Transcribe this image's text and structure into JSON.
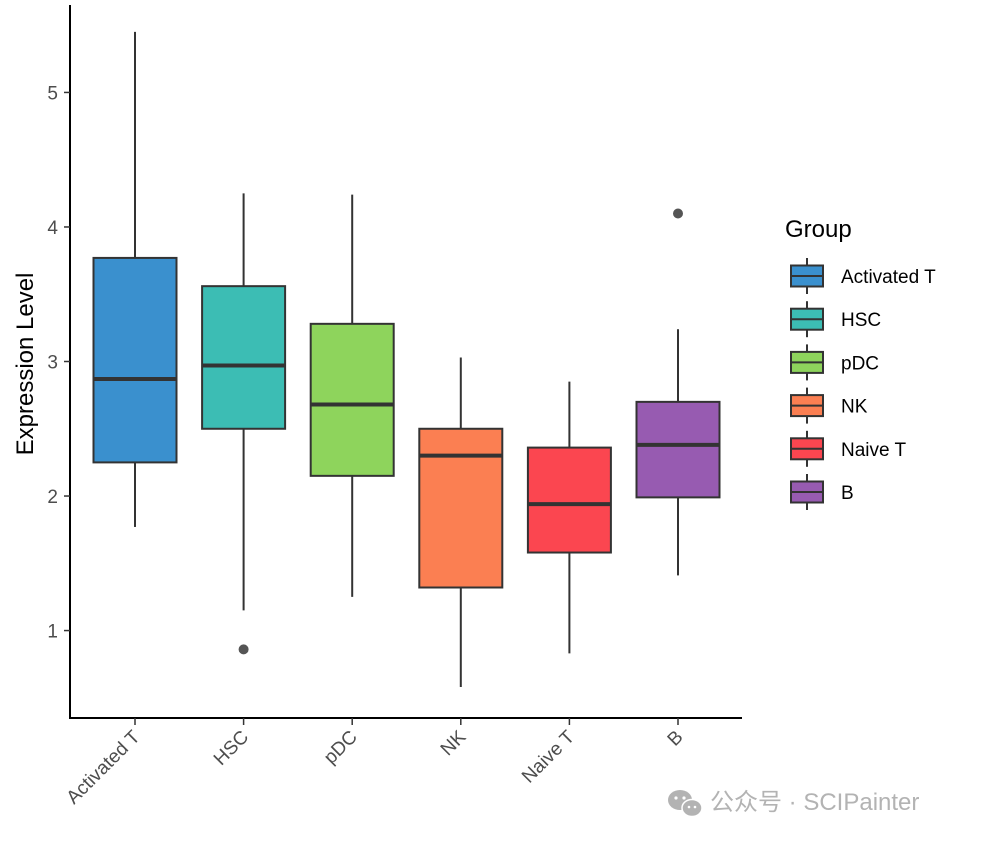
{
  "chart_data": {
    "type": "boxplot",
    "ylabel": "Expression Level",
    "xlabel": "",
    "ylim": [
      0.35,
      5.65
    ],
    "yticks": [
      1,
      2,
      3,
      4,
      5
    ],
    "grid": false,
    "legend": {
      "title": "Group",
      "position": "right"
    },
    "categories": [
      "Activated T",
      "HSC",
      "pDC",
      "NK",
      "Naive T",
      "B"
    ],
    "colors": [
      "#3a90ce",
      "#3cbdb4",
      "#8ed45c",
      "#fb7f52",
      "#fb4650",
      "#975bb1"
    ],
    "series": [
      {
        "name": "Activated T",
        "q1": 2.25,
        "median": 2.87,
        "q3": 3.77,
        "whisker_low": 1.77,
        "whisker_high": 5.45,
        "outliers": []
      },
      {
        "name": "HSC",
        "q1": 2.5,
        "median": 2.97,
        "q3": 3.56,
        "whisker_low": 1.15,
        "whisker_high": 4.25,
        "outliers": [
          0.86
        ]
      },
      {
        "name": "pDC",
        "q1": 2.15,
        "median": 2.68,
        "q3": 3.28,
        "whisker_low": 1.25,
        "whisker_high": 4.24,
        "outliers": []
      },
      {
        "name": "NK",
        "q1": 1.32,
        "median": 2.3,
        "q3": 2.5,
        "whisker_low": 0.58,
        "whisker_high": 3.03,
        "outliers": []
      },
      {
        "name": "Naive T",
        "q1": 1.58,
        "median": 1.94,
        "q3": 2.36,
        "whisker_low": 0.83,
        "whisker_high": 2.85,
        "outliers": []
      },
      {
        "name": "B",
        "q1": 1.99,
        "median": 2.38,
        "q3": 2.7,
        "whisker_low": 1.41,
        "whisker_high": 3.24,
        "outliers": [
          4.1
        ]
      }
    ]
  },
  "watermark": {
    "text": "公众号 · SCIPainter",
    "icon": "wechat-icon"
  }
}
